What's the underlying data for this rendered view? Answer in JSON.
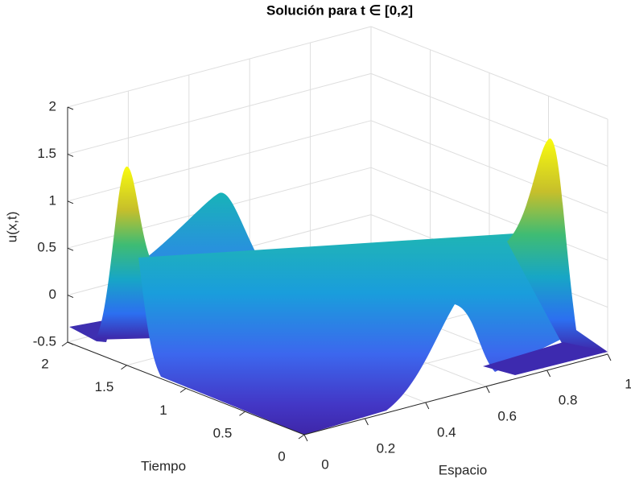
{
  "chart_data": {
    "type": "surface",
    "title": "Solución para t ∈ [0,2]",
    "xlabel": "Espacio",
    "ylabel": "Tiempo",
    "zlabel": "u(x,t)",
    "xlim": [
      0,
      1
    ],
    "xticks": [
      0,
      0.2,
      0.4,
      0.6,
      0.8,
      1
    ],
    "ylim": [
      0,
      2
    ],
    "yticks": [
      0,
      0.5,
      1,
      1.5,
      2
    ],
    "zlim": [
      -0.5,
      2
    ],
    "zticks": [
      -0.5,
      0,
      0.5,
      1,
      1.5,
      2
    ],
    "grid": true
  }
}
